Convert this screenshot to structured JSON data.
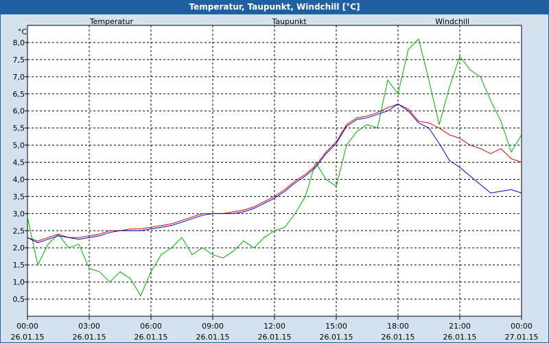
{
  "window": {
    "title": "Temperatur, Taupunkt, Windchill [°C]"
  },
  "colors": {
    "background": "#d4e2ef",
    "titlebar": "#2060a0",
    "plot_bg": "#ffffff"
  },
  "chart_data": {
    "type": "line",
    "ylabel": "°C",
    "ylim": [
      0,
      8.5
    ],
    "yticks": [
      0.5,
      1.0,
      1.5,
      2.0,
      2.5,
      3.0,
      3.5,
      4.0,
      4.5,
      5.0,
      5.5,
      6.0,
      6.5,
      7.0,
      7.5,
      8.0
    ],
    "ytick_labels": [
      "0,5",
      "1,0",
      "1,5",
      "2,0",
      "2,5",
      "3,0",
      "3,5",
      "4,0",
      "4,5",
      "5,0",
      "5,5",
      "6,0",
      "6,5",
      "7,0",
      "7,5",
      "8,0"
    ],
    "xlim": [
      0,
      24
    ],
    "xticks": [
      0,
      3,
      6,
      9,
      12,
      15,
      18,
      21,
      24
    ],
    "xtick_time": [
      "00:00",
      "03:00",
      "06:00",
      "09:00",
      "12:00",
      "15:00",
      "18:00",
      "21:00",
      "00:00"
    ],
    "xtick_date": [
      "26.01.15",
      "26.01.15",
      "26.01.15",
      "26.01.15",
      "26.01.15",
      "26.01.15",
      "26.01.15",
      "26.01.15",
      "27.01.15"
    ],
    "grid": true,
    "series": [
      {
        "name": "Temperatur",
        "color": "#d00000",
        "x": [
          0,
          0.5,
          1,
          1.5,
          2,
          2.5,
          3,
          3.5,
          4,
          4.5,
          5,
          5.5,
          6,
          6.5,
          7,
          7.5,
          8,
          8.5,
          9,
          9.5,
          10,
          10.5,
          11,
          11.5,
          12,
          12.5,
          13,
          13.5,
          14,
          14.5,
          15,
          15.5,
          16,
          16.5,
          17,
          17.5,
          18,
          18.5,
          19,
          19.5,
          20,
          20.5,
          21,
          21.5,
          22,
          22.5,
          23,
          23.5,
          24
        ],
        "values": [
          2.3,
          2.2,
          2.3,
          2.4,
          2.3,
          2.3,
          2.35,
          2.4,
          2.5,
          2.5,
          2.55,
          2.55,
          2.6,
          2.65,
          2.7,
          2.8,
          2.9,
          3.0,
          3.0,
          3.0,
          3.05,
          3.1,
          3.2,
          3.35,
          3.5,
          3.7,
          3.95,
          4.15,
          4.4,
          4.8,
          5.1,
          5.6,
          5.8,
          5.85,
          5.95,
          6.1,
          6.2,
          6.05,
          5.7,
          5.65,
          5.5,
          5.3,
          5.2,
          5.0,
          4.9,
          4.75,
          4.9,
          4.6,
          4.5
        ]
      },
      {
        "name": "Taupunkt",
        "color": "#0000c0",
        "x": [
          0,
          0.5,
          1,
          1.5,
          2,
          2.5,
          3,
          3.5,
          4,
          4.5,
          5,
          5.5,
          6,
          6.5,
          7,
          7.5,
          8,
          8.5,
          9,
          9.5,
          10,
          10.5,
          11,
          11.5,
          12,
          12.5,
          13,
          13.5,
          14,
          14.5,
          15,
          15.5,
          16,
          16.5,
          17,
          17.5,
          18,
          18.5,
          19,
          19.5,
          20,
          20.5,
          21,
          21.5,
          22,
          22.5,
          23,
          23.5,
          24
        ],
        "values": [
          2.3,
          2.15,
          2.25,
          2.35,
          2.3,
          2.25,
          2.3,
          2.35,
          2.45,
          2.5,
          2.5,
          2.5,
          2.55,
          2.6,
          2.65,
          2.75,
          2.85,
          2.95,
          3.0,
          3.0,
          3.0,
          3.05,
          3.15,
          3.3,
          3.45,
          3.65,
          3.9,
          4.1,
          4.35,
          4.75,
          5.05,
          5.55,
          5.75,
          5.8,
          5.9,
          6.0,
          6.2,
          6.0,
          5.65,
          5.5,
          5.05,
          4.55,
          4.35,
          4.1,
          3.85,
          3.6,
          3.65,
          3.7,
          3.6
        ]
      },
      {
        "name": "Windchill",
        "color": "#00aa00",
        "x": [
          0,
          0.5,
          1,
          1.5,
          2,
          2.5,
          3,
          3.5,
          4,
          4.5,
          5,
          5.5,
          6,
          6.5,
          7,
          7.5,
          8,
          8.5,
          9,
          9.5,
          10,
          10.5,
          11,
          11.5,
          12,
          12.5,
          13,
          13.5,
          14,
          14.5,
          15,
          15.5,
          16,
          16.5,
          17,
          17.5,
          18,
          18.5,
          19,
          19.5,
          20,
          20.5,
          21,
          21.5,
          22,
          22.5,
          23,
          23.5,
          24
        ],
        "values": [
          2.9,
          1.5,
          2.1,
          2.4,
          2.0,
          2.1,
          1.4,
          1.3,
          1.0,
          1.3,
          1.1,
          0.6,
          1.3,
          1.8,
          2.0,
          2.3,
          1.8,
          2.0,
          1.8,
          1.7,
          1.9,
          2.2,
          2.0,
          2.3,
          2.5,
          2.6,
          3.0,
          3.5,
          4.5,
          4.0,
          3.8,
          5.0,
          5.4,
          5.6,
          5.5,
          6.9,
          6.5,
          7.8,
          8.1,
          6.9,
          5.6,
          6.7,
          7.6,
          7.2,
          7.0,
          6.3,
          5.7,
          4.8,
          5.3
        ]
      }
    ]
  }
}
